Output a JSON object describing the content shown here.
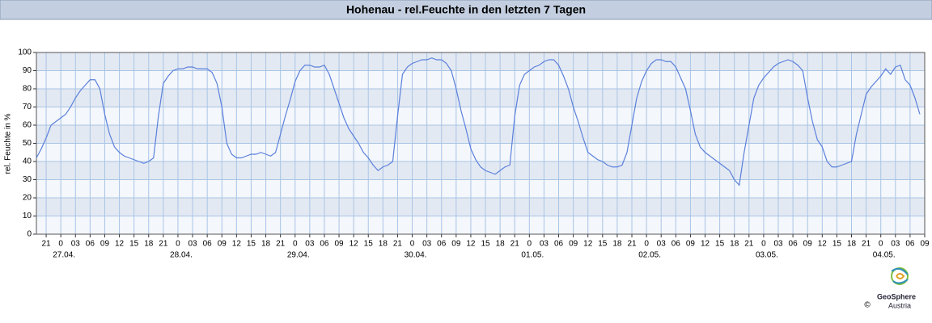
{
  "chart_data": {
    "type": "line",
    "title": "Hohenau - rel.Feuchte in den letzten 7 Tagen",
    "y_label": "rel. Feuchte in %",
    "x": [
      "26.04. 19",
      "26.04. 20",
      "26.04. 21",
      "26.04. 22",
      "26.04. 23",
      "27.04. 00",
      "27.04. 01",
      "27.04. 02",
      "27.04. 03",
      "27.04. 04",
      "27.04. 05",
      "27.04. 06",
      "27.04. 07",
      "27.04. 08",
      "27.04. 09",
      "27.04. 10",
      "27.04. 11",
      "27.04. 12",
      "27.04. 13",
      "27.04. 14",
      "27.04. 15",
      "27.04. 16",
      "27.04. 17",
      "27.04. 18",
      "27.04. 19",
      "27.04. 20",
      "27.04. 21",
      "27.04. 22",
      "27.04. 23",
      "28.04. 00",
      "28.04. 01",
      "28.04. 02",
      "28.04. 03",
      "28.04. 04",
      "28.04. 05",
      "28.04. 06",
      "28.04. 07",
      "28.04. 08",
      "28.04. 09",
      "28.04. 10",
      "28.04. 11",
      "28.04. 12",
      "28.04. 13",
      "28.04. 14",
      "28.04. 15",
      "28.04. 16",
      "28.04. 17",
      "28.04. 18",
      "28.04. 19",
      "28.04. 20",
      "28.04. 21",
      "28.04. 22",
      "28.04. 23",
      "29.04. 00",
      "29.04. 01",
      "29.04. 02",
      "29.04. 03",
      "29.04. 04",
      "29.04. 05",
      "29.04. 06",
      "29.04. 07",
      "29.04. 08",
      "29.04. 09",
      "29.04. 10",
      "29.04. 11",
      "29.04. 12",
      "29.04. 13",
      "29.04. 14",
      "29.04. 15",
      "29.04. 16",
      "29.04. 17",
      "29.04. 18",
      "29.04. 19",
      "29.04. 20",
      "29.04. 21",
      "29.04. 22",
      "29.04. 23",
      "30.04. 00",
      "30.04. 01",
      "30.04. 02",
      "30.04. 03",
      "30.04. 04",
      "30.04. 05",
      "30.04. 06",
      "30.04. 07",
      "30.04. 08",
      "30.04. 09",
      "30.04. 10",
      "30.04. 11",
      "30.04. 12",
      "30.04. 13",
      "30.04. 14",
      "30.04. 15",
      "30.04. 16",
      "30.04. 17",
      "30.04. 18",
      "30.04. 19",
      "30.04. 20",
      "30.04. 21",
      "30.04. 22",
      "30.04. 23",
      "01.05. 00",
      "01.05. 01",
      "01.05. 02",
      "01.05. 03",
      "01.05. 04",
      "01.05. 05",
      "01.05. 06",
      "01.05. 07",
      "01.05. 08",
      "01.05. 09",
      "01.05. 10",
      "01.05. 11",
      "01.05. 12",
      "01.05. 13",
      "01.05. 14",
      "01.05. 15",
      "01.05. 16",
      "01.05. 17",
      "01.05. 18",
      "01.05. 19",
      "01.05. 20",
      "01.05. 21",
      "01.05. 22",
      "01.05. 23",
      "02.05. 00",
      "02.05. 01",
      "02.05. 02",
      "02.05. 03",
      "02.05. 04",
      "02.05. 05",
      "02.05. 06",
      "02.05. 07",
      "02.05. 08",
      "02.05. 09",
      "02.05. 10",
      "02.05. 11",
      "02.05. 12",
      "02.05. 13",
      "02.05. 14",
      "02.05. 15",
      "02.05. 16",
      "02.05. 17",
      "02.05. 18",
      "02.05. 19",
      "02.05. 20",
      "02.05. 21",
      "02.05. 22",
      "02.05. 23",
      "03.05. 00",
      "03.05. 01",
      "03.05. 02",
      "03.05. 03",
      "03.05. 04",
      "03.05. 05",
      "03.05. 06",
      "03.05. 07",
      "03.05. 08",
      "03.05. 09",
      "03.05. 10",
      "03.05. 11",
      "03.05. 12",
      "03.05. 13",
      "03.05. 14",
      "03.05. 15",
      "03.05. 16",
      "03.05. 17",
      "03.05. 18",
      "03.05. 19",
      "03.05. 20",
      "03.05. 21",
      "03.05. 22",
      "03.05. 23",
      "04.05. 00",
      "04.05. 01",
      "04.05. 02",
      "04.05. 03",
      "04.05. 04",
      "04.05. 05",
      "04.05. 06",
      "04.05. 07",
      "04.05. 08"
    ],
    "series": [
      {
        "color": "#5b80dc",
        "values": [
          42,
          47,
          53,
          60,
          62,
          64,
          66,
          70,
          75,
          79,
          82,
          85,
          85,
          80,
          66,
          55,
          48,
          45,
          43,
          42,
          41,
          40,
          39,
          40,
          42,
          65,
          83,
          87,
          90,
          91,
          91,
          92,
          92,
          91,
          91,
          91,
          89,
          83,
          70,
          50,
          44,
          42,
          42,
          43,
          44,
          44,
          45,
          44,
          43,
          45,
          55,
          65,
          74,
          84,
          90,
          93,
          93,
          92,
          92,
          93,
          88,
          80,
          72,
          64,
          58,
          54,
          50,
          45,
          42,
          38,
          35,
          37,
          38,
          40,
          65,
          88,
          92,
          94,
          95,
          96,
          96,
          97,
          96,
          96,
          94,
          90,
          80,
          68,
          58,
          47,
          41,
          37,
          35,
          34,
          33,
          35,
          37,
          38,
          65,
          82,
          88,
          90,
          92,
          93,
          95,
          96,
          96,
          93,
          87,
          80,
          70,
          62,
          53,
          45,
          43,
          41,
          40,
          38,
          37,
          37,
          38,
          45,
          60,
          75,
          84,
          90,
          94,
          96,
          96,
          95,
          95,
          92,
          86,
          80,
          68,
          55,
          48,
          45,
          43,
          41,
          39,
          37,
          35,
          30,
          27,
          45,
          60,
          75,
          82,
          86,
          89,
          92,
          94,
          95,
          96,
          95,
          93,
          90,
          75,
          62,
          52,
          48,
          40,
          37,
          37,
          38,
          39,
          40,
          55,
          66,
          77,
          81,
          84,
          87,
          91,
          88,
          92,
          93,
          85,
          82,
          75,
          66
        ]
      }
    ],
    "xlim": [
      "26.04. 19",
      "04.05. 09"
    ],
    "xticks": [
      {
        "value": "26.04. 21",
        "label": "21"
      },
      {
        "value": "27.04. 00",
        "label": "0"
      },
      {
        "value": "27.04. 03",
        "label": "03"
      },
      {
        "value": "27.04. 06",
        "label": "06"
      },
      {
        "value": "27.04. 09",
        "label": "09"
      },
      {
        "value": "27.04. 12",
        "label": "12"
      },
      {
        "value": "27.04. 15",
        "label": "15"
      },
      {
        "value": "27.04. 18",
        "label": "18"
      },
      {
        "value": "27.04. 21",
        "label": "21"
      },
      {
        "value": "28.04. 00",
        "label": "0"
      },
      {
        "value": "28.04. 03",
        "label": "03"
      },
      {
        "value": "28.04. 06",
        "label": "06"
      },
      {
        "value": "28.04. 09",
        "label": "09"
      },
      {
        "value": "28.04. 12",
        "label": "12"
      },
      {
        "value": "28.04. 15",
        "label": "15"
      },
      {
        "value": "28.04. 18",
        "label": "18"
      },
      {
        "value": "28.04. 21",
        "label": "21"
      },
      {
        "value": "29.04. 00",
        "label": "0"
      },
      {
        "value": "29.04. 03",
        "label": "03"
      },
      {
        "value": "29.04. 06",
        "label": "06"
      },
      {
        "value": "29.04. 09",
        "label": "09"
      },
      {
        "value": "29.04. 12",
        "label": "12"
      },
      {
        "value": "29.04. 15",
        "label": "15"
      },
      {
        "value": "29.04. 18",
        "label": "18"
      },
      {
        "value": "29.04. 21",
        "label": "21"
      },
      {
        "value": "30.04. 00",
        "label": "0"
      },
      {
        "value": "30.04. 03",
        "label": "03"
      },
      {
        "value": "30.04. 06",
        "label": "06"
      },
      {
        "value": "30.04. 09",
        "label": "09"
      },
      {
        "value": "30.04. 12",
        "label": "12"
      },
      {
        "value": "30.04. 15",
        "label": "15"
      },
      {
        "value": "30.04. 18",
        "label": "18"
      },
      {
        "value": "30.04. 21",
        "label": "21"
      },
      {
        "value": "01.05. 00",
        "label": "0"
      },
      {
        "value": "01.05. 03",
        "label": "03"
      },
      {
        "value": "01.05. 06",
        "label": "06"
      },
      {
        "value": "01.05. 09",
        "label": "09"
      },
      {
        "value": "01.05. 12",
        "label": "12"
      },
      {
        "value": "01.05. 15",
        "label": "15"
      },
      {
        "value": "01.05. 18",
        "label": "18"
      },
      {
        "value": "01.05. 21",
        "label": "21"
      },
      {
        "value": "02.05. 00",
        "label": "0"
      },
      {
        "value": "02.05. 03",
        "label": "03"
      },
      {
        "value": "02.05. 06",
        "label": "06"
      },
      {
        "value": "02.05. 09",
        "label": "09"
      },
      {
        "value": "02.05. 12",
        "label": "12"
      },
      {
        "value": "02.05. 15",
        "label": "15"
      },
      {
        "value": "02.05. 18",
        "label": "18"
      },
      {
        "value": "02.05. 21",
        "label": "21"
      },
      {
        "value": "03.05. 00",
        "label": "0"
      },
      {
        "value": "03.05. 03",
        "label": "03"
      },
      {
        "value": "03.05. 06",
        "label": "06"
      },
      {
        "value": "03.05. 09",
        "label": "09"
      },
      {
        "value": "03.05. 12",
        "label": "12"
      },
      {
        "value": "03.05. 15",
        "label": "15"
      },
      {
        "value": "03.05. 18",
        "label": "18"
      },
      {
        "value": "03.05. 21",
        "label": "21"
      },
      {
        "value": "04.05. 00",
        "label": "0"
      },
      {
        "value": "04.05. 03",
        "label": "03"
      },
      {
        "value": "04.05. 06",
        "label": "06"
      },
      {
        "value": "04.05. 09",
        "label": "09"
      }
    ],
    "date_labels": [
      {
        "value": "27.04. 00",
        "label": "27.04."
      },
      {
        "value": "28.04. 00",
        "label": "28.04."
      },
      {
        "value": "29.04. 00",
        "label": "29.04."
      },
      {
        "value": "30.04. 00",
        "label": "30.04."
      },
      {
        "value": "01.05. 00",
        "label": "01.05."
      },
      {
        "value": "02.05. 00",
        "label": "02.05."
      },
      {
        "value": "03.05. 00",
        "label": "03.05."
      },
      {
        "value": "04.05. 00",
        "label": "04.05."
      }
    ],
    "ylim": [
      0,
      100
    ],
    "yticks": [
      0,
      10,
      20,
      30,
      40,
      50,
      60,
      70,
      80,
      90,
      100
    ],
    "grid": true,
    "band_colors": [
      "#f4f7fb",
      "#e3e9f2"
    ],
    "logo": {
      "name": "GeoSphere",
      "sub": "Austria",
      "copyright": "©"
    }
  }
}
